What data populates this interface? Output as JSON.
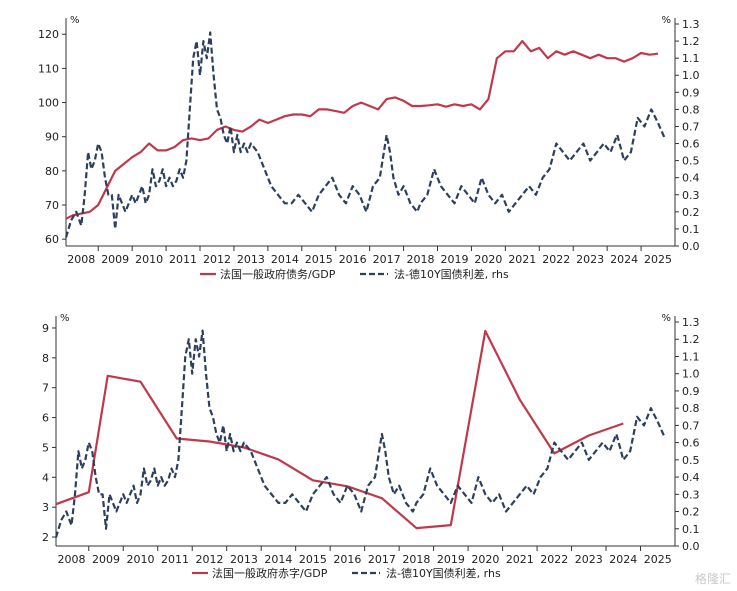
{
  "watermark": "格隆汇",
  "colors": {
    "debt": "#c0394b",
    "spread": "#2e3f5e",
    "axis": "#333333"
  },
  "chart_data": [
    {
      "type": "line",
      "x_ticks": [
        "2008",
        "2009",
        "2010",
        "2011",
        "2012",
        "2013",
        "2014",
        "2015",
        "2016",
        "2017",
        "2018",
        "2019",
        "2020",
        "2021",
        "2022",
        "2023",
        "2024",
        "2025"
      ],
      "xlim": [
        2007.55,
        2025.5
      ],
      "left_axis": {
        "unit": "%",
        "ylim": [
          58,
          123
        ],
        "ticks": [
          60,
          70,
          80,
          90,
          100,
          110,
          120
        ]
      },
      "right_axis": {
        "unit": "%",
        "ylim": [
          0.0,
          1.3
        ],
        "ticks": [
          "0.0",
          "0.1",
          "0.2",
          "0.3",
          "0.4",
          "0.5",
          "0.6",
          "0.7",
          "0.8",
          "0.9",
          "1.0",
          "1.1",
          "1.2",
          "1.3"
        ]
      },
      "legend_position": "bottom",
      "series": [
        {
          "name": "法国一般政府债务/GDP",
          "axis": "left",
          "style": "solid",
          "x": [
            2007.55,
            2007.75,
            2008.0,
            2008.25,
            2008.5,
            2008.75,
            2009.0,
            2009.25,
            2009.5,
            2009.75,
            2010.0,
            2010.25,
            2010.5,
            2010.75,
            2011.0,
            2011.25,
            2011.5,
            2011.75,
            2012.0,
            2012.25,
            2012.5,
            2012.75,
            2013.0,
            2013.25,
            2013.5,
            2013.75,
            2014.0,
            2014.25,
            2014.5,
            2014.75,
            2015.0,
            2015.25,
            2015.5,
            2015.75,
            2016.0,
            2016.25,
            2016.5,
            2016.75,
            2017.0,
            2017.25,
            2017.5,
            2017.75,
            2018.0,
            2018.25,
            2018.5,
            2018.75,
            2019.0,
            2019.25,
            2019.5,
            2019.75,
            2020.0,
            2020.25,
            2020.5,
            2020.75,
            2021.0,
            2021.25,
            2021.5,
            2021.75,
            2022.0,
            2022.25,
            2022.5,
            2022.75,
            2023.0,
            2023.25,
            2023.5,
            2023.75,
            2024.0,
            2024.25,
            2024.5,
            2024.75,
            2025.0
          ],
          "y": [
            66,
            67,
            67.5,
            68,
            70,
            75,
            80,
            82,
            84,
            85.5,
            88,
            86,
            86,
            87,
            89,
            89.5,
            89,
            89.5,
            92,
            93,
            92,
            91.5,
            93,
            95,
            94,
            95,
            96,
            96.5,
            96.5,
            96,
            98,
            98,
            97.5,
            97,
            99,
            100,
            99,
            98,
            101,
            101.5,
            100.5,
            99,
            99,
            99.2,
            99.5,
            98.8,
            99.5,
            99,
            99.5,
            98,
            101,
            113,
            115,
            115,
            118,
            115,
            116,
            113,
            115,
            114,
            115,
            114,
            113,
            114,
            113,
            113,
            112,
            113,
            114.5,
            114,
            114.3
          ]
        },
        {
          "name": "法-德10Y国债利差, rhs",
          "axis": "right",
          "style": "dashed",
          "x": [
            2007.55,
            2007.7,
            2007.85,
            2008.0,
            2008.1,
            2008.2,
            2008.3,
            2008.4,
            2008.5,
            2008.6,
            2008.7,
            2008.8,
            2008.9,
            2009.0,
            2009.1,
            2009.2,
            2009.3,
            2009.4,
            2009.5,
            2009.6,
            2009.7,
            2009.8,
            2009.9,
            2010.0,
            2010.1,
            2010.2,
            2010.3,
            2010.4,
            2010.5,
            2010.6,
            2010.7,
            2010.8,
            2010.9,
            2011.0,
            2011.1,
            2011.2,
            2011.3,
            2011.4,
            2011.5,
            2011.6,
            2011.7,
            2011.8,
            2011.9,
            2012.0,
            2012.1,
            2012.2,
            2012.3,
            2012.4,
            2012.5,
            2012.6,
            2012.7,
            2012.8,
            2012.9,
            2013.0,
            2013.2,
            2013.4,
            2013.6,
            2013.8,
            2014.0,
            2014.2,
            2014.4,
            2014.6,
            2014.8,
            2015.0,
            2015.2,
            2015.4,
            2015.6,
            2015.8,
            2016.0,
            2016.2,
            2016.4,
            2016.6,
            2016.8,
            2017.0,
            2017.1,
            2017.2,
            2017.35,
            2017.5,
            2017.7,
            2017.9,
            2018.0,
            2018.2,
            2018.4,
            2018.6,
            2018.8,
            2019.0,
            2019.2,
            2019.4,
            2019.6,
            2019.8,
            2020.0,
            2020.2,
            2020.4,
            2020.6,
            2020.8,
            2021.0,
            2021.2,
            2021.4,
            2021.6,
            2021.8,
            2022.0,
            2022.2,
            2022.4,
            2022.6,
            2022.8,
            2023.0,
            2023.2,
            2023.4,
            2023.6,
            2023.8,
            2024.0,
            2024.2,
            2024.4,
            2024.6,
            2024.8,
            2025.0,
            2025.2
          ],
          "y": [
            0.05,
            0.15,
            0.2,
            0.12,
            0.3,
            0.55,
            0.45,
            0.5,
            0.6,
            0.55,
            0.4,
            0.3,
            0.3,
            0.1,
            0.3,
            0.25,
            0.2,
            0.25,
            0.3,
            0.25,
            0.3,
            0.35,
            0.25,
            0.3,
            0.45,
            0.35,
            0.38,
            0.45,
            0.35,
            0.4,
            0.35,
            0.38,
            0.45,
            0.4,
            0.5,
            0.8,
            1.1,
            1.2,
            1.0,
            1.2,
            1.1,
            1.25,
            1.0,
            0.8,
            0.75,
            0.65,
            0.6,
            0.7,
            0.55,
            0.65,
            0.55,
            0.6,
            0.55,
            0.6,
            0.55,
            0.45,
            0.35,
            0.3,
            0.25,
            0.25,
            0.3,
            0.25,
            0.2,
            0.3,
            0.35,
            0.4,
            0.3,
            0.25,
            0.35,
            0.3,
            0.2,
            0.35,
            0.4,
            0.65,
            0.55,
            0.4,
            0.3,
            0.35,
            0.25,
            0.2,
            0.25,
            0.3,
            0.45,
            0.35,
            0.3,
            0.25,
            0.35,
            0.3,
            0.25,
            0.4,
            0.3,
            0.25,
            0.3,
            0.2,
            0.25,
            0.3,
            0.35,
            0.3,
            0.4,
            0.45,
            0.6,
            0.55,
            0.5,
            0.55,
            0.6,
            0.5,
            0.55,
            0.6,
            0.55,
            0.65,
            0.5,
            0.55,
            0.75,
            0.7,
            0.8,
            0.72,
            0.63
          ]
        }
      ]
    },
    {
      "type": "line",
      "x_ticks": [
        "2008",
        "2009",
        "2010",
        "2011",
        "2012",
        "2013",
        "2014",
        "2015",
        "2016",
        "2017",
        "2018",
        "2019",
        "2020",
        "2021",
        "2022",
        "2023",
        "2024",
        "2025"
      ],
      "xlim": [
        2007.55,
        2025.5
      ],
      "left_axis": {
        "unit": "%",
        "ylim": [
          1.7,
          9.2
        ],
        "ticks": [
          2,
          3,
          4,
          5,
          6,
          7,
          8,
          9
        ]
      },
      "right_axis": {
        "unit": "%",
        "ylim": [
          0.0,
          1.3
        ],
        "ticks": [
          "0.0",
          "0.1",
          "0.2",
          "0.3",
          "0.4",
          "0.5",
          "0.6",
          "0.7",
          "0.8",
          "0.9",
          "1.0",
          "1.1",
          "1.2",
          "1.3"
        ]
      },
      "legend_position": "bottom",
      "series": [
        {
          "name": "法国一般政府赤字/GDP",
          "axis": "left",
          "style": "solid",
          "x": [
            2007.55,
            2008.5,
            2009.05,
            2010.0,
            2011.05,
            2012.0,
            2013.0,
            2014.0,
            2015.0,
            2016.0,
            2017.0,
            2018.0,
            2019.0,
            2020.0,
            2021.0,
            2022.0,
            2023.0,
            2024.0
          ],
          "y": [
            3.1,
            3.5,
            7.4,
            7.2,
            5.3,
            5.2,
            5.0,
            4.6,
            3.9,
            3.7,
            3.3,
            2.3,
            2.4,
            8.9,
            6.6,
            4.8,
            5.4,
            5.8
          ]
        },
        {
          "name": "法-德10Y国债利差, rhs",
          "axis": "right",
          "style": "dashed",
          "x": [
            2007.55,
            2007.7,
            2007.85,
            2008.0,
            2008.1,
            2008.2,
            2008.3,
            2008.4,
            2008.5,
            2008.6,
            2008.7,
            2008.8,
            2008.9,
            2009.0,
            2009.1,
            2009.2,
            2009.3,
            2009.4,
            2009.5,
            2009.6,
            2009.7,
            2009.8,
            2009.9,
            2010.0,
            2010.1,
            2010.2,
            2010.3,
            2010.4,
            2010.5,
            2010.6,
            2010.7,
            2010.8,
            2010.9,
            2011.0,
            2011.1,
            2011.2,
            2011.3,
            2011.4,
            2011.5,
            2011.6,
            2011.7,
            2011.8,
            2011.9,
            2012.0,
            2012.1,
            2012.2,
            2012.3,
            2012.4,
            2012.5,
            2012.6,
            2012.7,
            2012.8,
            2012.9,
            2013.0,
            2013.2,
            2013.4,
            2013.6,
            2013.8,
            2014.0,
            2014.2,
            2014.4,
            2014.6,
            2014.8,
            2015.0,
            2015.2,
            2015.4,
            2015.6,
            2015.8,
            2016.0,
            2016.2,
            2016.4,
            2016.6,
            2016.8,
            2017.0,
            2017.1,
            2017.2,
            2017.35,
            2017.5,
            2017.7,
            2017.9,
            2018.0,
            2018.2,
            2018.4,
            2018.6,
            2018.8,
            2019.0,
            2019.2,
            2019.4,
            2019.6,
            2019.8,
            2020.0,
            2020.2,
            2020.4,
            2020.6,
            2020.8,
            2021.0,
            2021.2,
            2021.4,
            2021.6,
            2021.8,
            2022.0,
            2022.2,
            2022.4,
            2022.6,
            2022.8,
            2023.0,
            2023.2,
            2023.4,
            2023.6,
            2023.8,
            2024.0,
            2024.2,
            2024.4,
            2024.6,
            2024.8,
            2025.0,
            2025.2
          ],
          "y": [
            0.05,
            0.15,
            0.2,
            0.12,
            0.3,
            0.55,
            0.45,
            0.5,
            0.6,
            0.55,
            0.4,
            0.3,
            0.3,
            0.1,
            0.3,
            0.25,
            0.2,
            0.25,
            0.3,
            0.25,
            0.3,
            0.35,
            0.25,
            0.3,
            0.45,
            0.35,
            0.38,
            0.45,
            0.35,
            0.4,
            0.35,
            0.38,
            0.45,
            0.4,
            0.5,
            0.8,
            1.1,
            1.2,
            1.0,
            1.2,
            1.1,
            1.25,
            1.0,
            0.8,
            0.75,
            0.65,
            0.6,
            0.7,
            0.55,
            0.65,
            0.55,
            0.6,
            0.55,
            0.6,
            0.55,
            0.45,
            0.35,
            0.3,
            0.25,
            0.25,
            0.3,
            0.25,
            0.2,
            0.3,
            0.35,
            0.4,
            0.3,
            0.25,
            0.35,
            0.3,
            0.2,
            0.35,
            0.4,
            0.65,
            0.55,
            0.4,
            0.3,
            0.35,
            0.25,
            0.2,
            0.25,
            0.3,
            0.45,
            0.35,
            0.3,
            0.25,
            0.35,
            0.3,
            0.25,
            0.4,
            0.3,
            0.25,
            0.3,
            0.2,
            0.25,
            0.3,
            0.35,
            0.3,
            0.4,
            0.45,
            0.6,
            0.55,
            0.5,
            0.55,
            0.6,
            0.5,
            0.55,
            0.6,
            0.55,
            0.65,
            0.5,
            0.55,
            0.75,
            0.7,
            0.8,
            0.72,
            0.63
          ]
        }
      ]
    }
  ]
}
